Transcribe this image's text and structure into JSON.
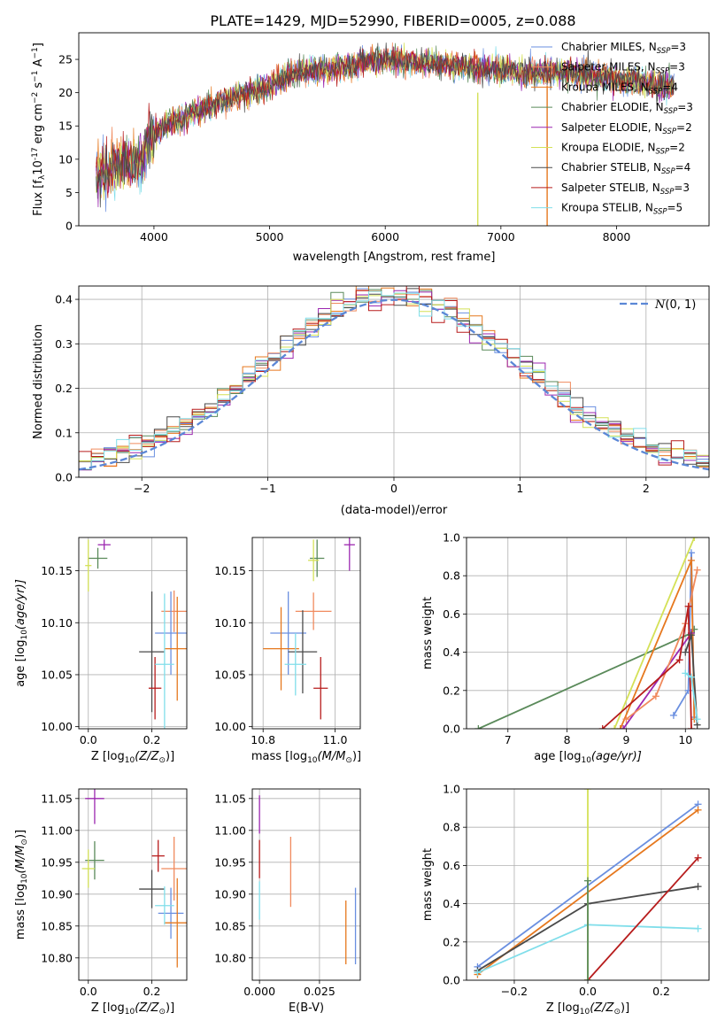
{
  "title": "PLATE=1429, MJD=52990, FIBERID=0005, z=0.088",
  "models": [
    {
      "name": "Chabrier MILES",
      "color": "#6a8fe0",
      "n": "3"
    },
    {
      "name": "Salpeter MILES",
      "color": "#f08a5d",
      "n": "3"
    },
    {
      "name": "Kroupa MILES",
      "color": "#e6781e",
      "n": "4"
    },
    {
      "name": "Chabrier ELODIE",
      "color": "#5a8a5a",
      "n": "3"
    },
    {
      "name": "Salpeter ELODIE",
      "color": "#9c27b0",
      "n": "2"
    },
    {
      "name": "Kroupa ELODIE",
      "color": "#d4e157",
      "n": "2"
    },
    {
      "name": "Chabrier STELIB",
      "color": "#4a4a4a",
      "n": "4"
    },
    {
      "name": "Salpeter STELIB",
      "color": "#b71c1c",
      "n": "3"
    },
    {
      "name": "Kroupa STELIB",
      "color": "#80deea",
      "n": "5"
    }
  ],
  "legend_suffix": "N",
  "legend_sub": "SSP",
  "chart_data": [
    {
      "id": "spectrum",
      "type": "line",
      "xlabel": "wavelength [Angstrom, rest frame]",
      "ylabel": "Flux [f",
      "ylabel_rest": "10",
      "ylabel_exp": "-17",
      "ylabel_units": " erg cm",
      "xlim": [
        3350,
        8800
      ],
      "ylim": [
        0,
        29
      ],
      "xticks": [
        "4000",
        "5000",
        "6000",
        "7000",
        "8000"
      ],
      "yticks": [
        "0",
        "5",
        "10",
        "15",
        "20",
        "25"
      ],
      "xtick_values": [
        4000,
        5000,
        6000,
        7000,
        8000
      ],
      "ytick_values": [
        0,
        5,
        10,
        15,
        20,
        25
      ],
      "continuum": [
        [
          3500,
          8
        ],
        [
          3700,
          9
        ],
        [
          3900,
          10
        ],
        [
          4000,
          14
        ],
        [
          4200,
          16
        ],
        [
          4500,
          18
        ],
        [
          4800,
          20
        ],
        [
          5000,
          21
        ],
        [
          5200,
          23
        ],
        [
          5500,
          23.5
        ],
        [
          5800,
          24.5
        ],
        [
          6000,
          25
        ],
        [
          6300,
          24.5
        ],
        [
          6600,
          24
        ],
        [
          6900,
          23.5
        ],
        [
          7200,
          23
        ],
        [
          7600,
          23
        ],
        [
          8000,
          22
        ],
        [
          8400,
          21
        ]
      ]
    },
    {
      "id": "residuals",
      "type": "histogram",
      "xlabel": "(data-model)/error",
      "ylabel": "Normed distribution",
      "xlim": [
        -2.5,
        2.5
      ],
      "ylim": [
        0,
        0.43
      ],
      "xticks": [
        "−2",
        "−1",
        "0",
        "1",
        "2"
      ],
      "yticks": [
        "0.0",
        "0.1",
        "0.2",
        "0.3",
        "0.4"
      ],
      "xtick_values": [
        -2,
        -1,
        0,
        1,
        2
      ],
      "ytick_values": [
        0,
        0.1,
        0.2,
        0.3,
        0.4
      ],
      "legend": "N(0,1)",
      "gauss_color": "#5b87d6"
    },
    {
      "id": "age_vs_Z",
      "type": "scatter",
      "xlabel": "Z [log",
      "xlabel_tail": "(Z/Z",
      "xlabel_end": ")]",
      "ylabel": "age  [log",
      "ylabel_tail": "(age/yr)]",
      "xlim": [
        -0.03,
        0.31
      ],
      "ylim": [
        9.998,
        10.182
      ],
      "xticks": [
        "0.0",
        "0.2"
      ],
      "yticks": [
        "10.00",
        "10.05",
        "10.10",
        "10.15"
      ],
      "xtick_values": [
        0,
        0.2
      ],
      "ytick_values": [
        10.0,
        10.05,
        10.1,
        10.15
      ],
      "points": [
        {
          "x": 0.05,
          "y": 10.175,
          "xe": 0.02,
          "ye": 0.005,
          "c": 4
        },
        {
          "x": 0.03,
          "y": 10.162,
          "xe": 0.03,
          "ye": 0.01,
          "c": 3
        },
        {
          "x": 0.0,
          "y": 10.155,
          "xe": 0.01,
          "ye": 0.025,
          "c": 5
        },
        {
          "x": 0.2,
          "y": 10.072,
          "xe": 0.04,
          "ye": 0.058,
          "c": 6
        },
        {
          "x": 0.21,
          "y": 10.037,
          "xe": 0.02,
          "ye": 0.03,
          "c": 7
        },
        {
          "x": 0.27,
          "y": 10.111,
          "xe": 0.04,
          "ye": 0.02,
          "c": 1
        },
        {
          "x": 0.26,
          "y": 10.09,
          "xe": 0.05,
          "ye": 0.04,
          "c": 0
        },
        {
          "x": 0.28,
          "y": 10.075,
          "xe": 0.04,
          "ye": 0.05,
          "c": 2
        },
        {
          "x": 0.24,
          "y": 10.06,
          "xe": 0.03,
          "ye": 0.068,
          "c": 8
        }
      ]
    },
    {
      "id": "age_vs_mass",
      "type": "scatter",
      "xlabel": "mass [log",
      "xlabel_tail": "(M/M",
      "xlabel_end": ")]",
      "ylabel": "",
      "xlim": [
        10.77,
        11.07
      ],
      "ylim": [
        9.998,
        10.182
      ],
      "xticks": [
        "10.8",
        "11.0"
      ],
      "yticks": [
        "10.00",
        "10.05",
        "10.10",
        "10.15"
      ],
      "xtick_values": [
        10.8,
        11.0
      ],
      "ytick_values": [
        10.0,
        10.05,
        10.1,
        10.15
      ],
      "points": [
        {
          "x": 11.04,
          "y": 10.175,
          "xe": 0.015,
          "ye": 0.025,
          "c": 4
        },
        {
          "x": 10.95,
          "y": 10.162,
          "xe": 0.02,
          "ye": 0.018,
          "c": 3
        },
        {
          "x": 10.94,
          "y": 10.16,
          "xe": 0.015,
          "ye": 0.02,
          "c": 5
        },
        {
          "x": 10.94,
          "y": 10.111,
          "xe": 0.05,
          "ye": 0.018,
          "c": 1
        },
        {
          "x": 10.87,
          "y": 10.09,
          "xe": 0.05,
          "ye": 0.04,
          "c": 0
        },
        {
          "x": 10.85,
          "y": 10.075,
          "xe": 0.05,
          "ye": 0.04,
          "c": 2
        },
        {
          "x": 10.91,
          "y": 10.072,
          "xe": 0.04,
          "ye": 0.04,
          "c": 6
        },
        {
          "x": 10.89,
          "y": 10.06,
          "xe": 0.03,
          "ye": 0.03,
          "c": 8
        },
        {
          "x": 10.96,
          "y": 10.037,
          "xe": 0.02,
          "ye": 0.03,
          "c": 7
        }
      ]
    },
    {
      "id": "weight_vs_age",
      "type": "line",
      "xlabel": "age  [log",
      "xlabel_tail": "(age/yr)]",
      "ylabel": "mass weight",
      "xlim": [
        6.3,
        10.4
      ],
      "ylim": [
        0,
        1
      ],
      "xticks": [
        "7",
        "8",
        "9",
        "10"
      ],
      "yticks": [
        "0.0",
        "0.2",
        "0.4",
        "0.6",
        "0.8",
        "1.0"
      ],
      "xtick_values": [
        7,
        8,
        9,
        10
      ],
      "ytick_values": [
        0,
        0.2,
        0.4,
        0.6,
        0.8,
        1.0
      ],
      "series": [
        {
          "c": 3,
          "pts": [
            [
              6.5,
              0.0
            ],
            [
              10.1,
              0.5
            ],
            [
              10.15,
              0.52
            ]
          ]
        },
        {
          "c": 0,
          "pts": [
            [
              9.8,
              0.07
            ],
            [
              10.05,
              0.2
            ],
            [
              10.1,
              0.92
            ],
            [
              10.15,
              0.06
            ]
          ]
        },
        {
          "c": 2,
          "pts": [
            [
              8.9,
              0.0
            ],
            [
              10.1,
              0.88
            ],
            [
              10.15,
              0.05
            ]
          ]
        },
        {
          "c": 5,
          "pts": [
            [
              8.8,
              0.0
            ],
            [
              10.15,
              1.0
            ]
          ]
        },
        {
          "c": 4,
          "pts": [
            [
              8.95,
              0.0
            ],
            [
              10.1,
              0.5
            ]
          ]
        },
        {
          "c": 1,
          "pts": [
            [
              9.0,
              0.05
            ],
            [
              9.5,
              0.17
            ],
            [
              10.0,
              0.55
            ],
            [
              10.2,
              0.83
            ]
          ]
        },
        {
          "c": 7,
          "pts": [
            [
              8.6,
              0.0
            ],
            [
              9.9,
              0.36
            ],
            [
              10.05,
              0.64
            ],
            [
              10.1,
              0.0
            ]
          ]
        },
        {
          "c": 6,
          "pts": [
            [
              10.0,
              0.4
            ],
            [
              10.1,
              0.49
            ],
            [
              10.2,
              0.02
            ]
          ]
        },
        {
          "c": 8,
          "pts": [
            [
              10.0,
              0.29
            ],
            [
              10.1,
              0.27
            ],
            [
              10.2,
              0.05
            ]
          ]
        }
      ]
    },
    {
      "id": "mass_vs_Z",
      "type": "scatter",
      "xlabel": "Z [log",
      "xlabel_tail": "(Z/Z",
      "xlabel_end": ")]",
      "ylabel": "mass [log",
      "ylabel_tail": "(M/M",
      "ylabel_end": ")]",
      "xlim": [
        -0.03,
        0.31
      ],
      "ylim": [
        10.765,
        11.065
      ],
      "xticks": [
        "0.0",
        "0.2"
      ],
      "yticks": [
        "10.80",
        "10.85",
        "10.90",
        "10.95",
        "11.00",
        "11.05"
      ],
      "xtick_values": [
        0,
        0.2
      ],
      "ytick_values": [
        10.8,
        10.85,
        10.9,
        10.95,
        11.0,
        11.05
      ],
      "points": [
        {
          "x": 0.02,
          "y": 11.05,
          "xe": 0.03,
          "ye": 0.04,
          "c": 4
        },
        {
          "x": 0.02,
          "y": 10.953,
          "xe": 0.03,
          "ye": 0.03,
          "c": 3
        },
        {
          "x": 0.0,
          "y": 10.94,
          "xe": 0.02,
          "ye": 0.03,
          "c": 5
        },
        {
          "x": 0.2,
          "y": 10.908,
          "xe": 0.04,
          "ye": 0.03,
          "c": 6
        },
        {
          "x": 0.22,
          "y": 10.96,
          "xe": 0.02,
          "ye": 0.025,
          "c": 7
        },
        {
          "x": 0.27,
          "y": 10.94,
          "xe": 0.04,
          "ye": 0.05,
          "c": 1
        },
        {
          "x": 0.26,
          "y": 10.87,
          "xe": 0.04,
          "ye": 0.04,
          "c": 0
        },
        {
          "x": 0.28,
          "y": 10.855,
          "xe": 0.04,
          "ye": 0.07,
          "c": 2
        },
        {
          "x": 0.24,
          "y": 10.882,
          "xe": 0.03,
          "ye": 0.03,
          "c": 8
        }
      ]
    },
    {
      "id": "mass_vs_EBV",
      "type": "scatter",
      "xlabel": "E(B-V)",
      "ylabel": "",
      "xlim": [
        -0.003,
        0.042
      ],
      "ylim": [
        10.765,
        11.065
      ],
      "xticks": [
        "0.000",
        "0.025"
      ],
      "yticks": [
        "10.80",
        "10.85",
        "10.90",
        "10.95",
        "11.00",
        "11.05"
      ],
      "xtick_values": [
        0,
        0.025
      ],
      "ytick_values": [
        10.8,
        10.85,
        10.9,
        10.95,
        11.0,
        11.05
      ],
      "points": [
        {
          "x": 0.0,
          "y": 11.025,
          "xe": 0,
          "ye": 0.03,
          "c": 4
        },
        {
          "x": 0.0,
          "y": 10.955,
          "xe": 0,
          "ye": 0.03,
          "c": 7
        },
        {
          "x": 0.0,
          "y": 10.89,
          "xe": 0,
          "ye": 0.03,
          "c": 8
        },
        {
          "x": 0.013,
          "y": 10.935,
          "xe": 0,
          "ye": 0.055,
          "c": 1
        },
        {
          "x": 0.036,
          "y": 10.84,
          "xe": 0,
          "ye": 0.05,
          "c": 2
        },
        {
          "x": 0.04,
          "y": 10.85,
          "xe": 0,
          "ye": 0.06,
          "c": 0
        }
      ]
    },
    {
      "id": "weight_vs_Z",
      "type": "line",
      "xlabel": "Z [log",
      "xlabel_tail": "(Z/Z",
      "xlabel_end": ")]",
      "ylabel": "mass weight",
      "xlim": [
        -0.33,
        0.33
      ],
      "ylim": [
        0,
        1
      ],
      "xticks": [
        "−0.2",
        "0.0",
        "0.2"
      ],
      "yticks": [
        "0.0",
        "0.2",
        "0.4",
        "0.6",
        "0.8",
        "1.0"
      ],
      "xtick_values": [
        -0.2,
        0,
        0.2
      ],
      "ytick_values": [
        0,
        0.2,
        0.4,
        0.6,
        0.8,
        1.0
      ],
      "series": [
        {
          "c": 0,
          "pts": [
            [
              -0.3,
              0.07
            ],
            [
              0.3,
              0.92
            ]
          ]
        },
        {
          "c": 2,
          "pts": [
            [
              -0.3,
              0.03
            ],
            [
              0.3,
              0.89
            ]
          ]
        },
        {
          "c": 6,
          "pts": [
            [
              -0.3,
              0.05
            ],
            [
              0.0,
              0.4
            ],
            [
              0.3,
              0.49
            ]
          ]
        },
        {
          "c": 8,
          "pts": [
            [
              -0.3,
              0.04
            ],
            [
              0.0,
              0.29
            ],
            [
              0.3,
              0.27
            ]
          ]
        },
        {
          "c": 7,
          "pts": [
            [
              0.0,
              0.0
            ],
            [
              0.3,
              0.64
            ]
          ]
        },
        {
          "c": 5,
          "pts": [
            [
              0.0,
              1.0
            ],
            [
              0.0,
              0.0
            ]
          ]
        },
        {
          "c": 3,
          "pts": [
            [
              0.0,
              0.52
            ],
            [
              0.0,
              0.0
            ]
          ]
        }
      ]
    }
  ]
}
